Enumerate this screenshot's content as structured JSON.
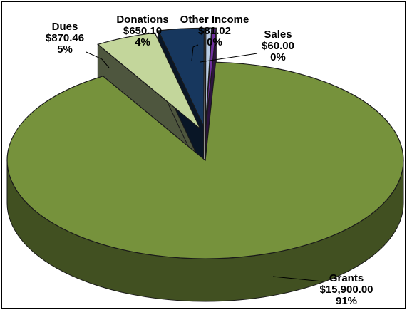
{
  "chart_data": {
    "type": "pie",
    "title": "",
    "slices": [
      {
        "name": "Grants",
        "value": 15900.0,
        "value_label": "$15,900.00",
        "percent_label": "91%",
        "color": "#76923c",
        "exploded": false
      },
      {
        "name": "Dues",
        "value": 870.46,
        "value_label": "$870.46",
        "percent_label": "5%",
        "color": "#c3d69b",
        "exploded": true
      },
      {
        "name": "Donations",
        "value": 650.1,
        "value_label": "$650.10",
        "percent_label": "4%",
        "color": "#17375e",
        "exploded": true
      },
      {
        "name": "Other Income",
        "value": 81.02,
        "value_label": "$81.02",
        "percent_label": "0%",
        "color": "#b9cde5",
        "exploded": true
      },
      {
        "name": "Sales",
        "value": 60.0,
        "value_label": "$60.00",
        "percent_label": "0%",
        "color": "#7030a0",
        "exploded": true
      }
    ],
    "style": "3d-pie",
    "legend": "none",
    "data_labels": "category, value, percent"
  }
}
